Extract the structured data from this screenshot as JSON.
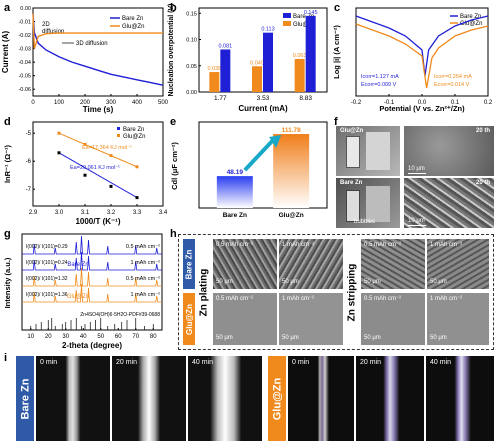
{
  "panel_labels": [
    "a",
    "b",
    "c",
    "d",
    "e",
    "f",
    "g",
    "h",
    "i"
  ],
  "colors": {
    "bare": "#1f1fd6",
    "glu": "#f08a1c",
    "arrow": "#1aa8c8"
  },
  "a": {
    "xlabel": "Time (s)",
    "ylabel": "Current (A)",
    "xticks": [
      "0",
      "100",
      "200",
      "300",
      "400",
      "500"
    ],
    "yticks": [
      "0.00",
      "-0.01",
      "-0.02",
      "-0.03",
      "-0.04",
      "-0.05",
      "-0.06"
    ],
    "ann_2d": "2D",
    "ann_2d2": "diffusion",
    "ann_3d": "3D diffusion",
    "legend": [
      "Bare Zn",
      "Glu@Zn"
    ]
  },
  "b": {
    "xlabel": "Current (mA)",
    "ylabel": "Nucleation overpotential (V)",
    "yticks": [
      "0.00",
      "0.05",
      "0.10",
      "0.15"
    ],
    "legend": [
      "Bare Zn",
      "Glu@Zn"
    ]
  },
  "c": {
    "xlabel": "Potential (V vs. Zn²⁺/Zn)",
    "ylabel": "Log |i| (A cm⁻²)",
    "xticks": [
      "-0.2",
      "-0.1",
      "0.0",
      "0.1",
      "0.2"
    ],
    "legend": [
      "Bare Zn",
      "Glu@Zn"
    ],
    "bare_icorr": "I",
    "bare_l1": "Icorr=1.127 mA",
    "bare_l2": "Ecorr=0.009 V",
    "glu_l1": "Icorr=0.254 mA",
    "glu_l2": "Ecorr=0.014 V"
  },
  "d": {
    "xlabel": "1000/T (K⁻¹)",
    "ylabel": "lnR⁻¹ (Ω⁻¹)",
    "xticks": [
      "2.9",
      "3.0",
      "3.1",
      "3.2",
      "3.3",
      "3.4"
    ],
    "yticks": [
      "-5",
      "-6",
      "-7"
    ],
    "legend": [
      "Bare Zn",
      "Glu@Zn"
    ],
    "ea_glu": "Ea=17.364 KJ mol⁻¹",
    "ea_bare": "Ea=20.061 KJ mol⁻¹"
  },
  "e": {
    "ylabel": "Cdl (μF cm⁻²)",
    "categories": [
      "Bare Zn",
      "Glu@Zn"
    ],
    "values": [
      "48.19",
      "111.78"
    ]
  },
  "f": {
    "label_glu": "Glu@Zn",
    "label_20th": "20 th",
    "scale": "10 μm",
    "label_bare": "Bare Zn",
    "label_bubbles": "bubbles",
    "label_20th_b": "20 th"
  },
  "g": {
    "xlabel": "2-theta (degree)",
    "ylabel": "Intensity (a.u.)",
    "xticks": [
      "10",
      "20",
      "30",
      "40",
      "50",
      "60",
      "70",
      "80"
    ],
    "legend": [
      "Bare Zn",
      "Glu@Zn"
    ],
    "ratios": [
      "I(002)/ I(101)=0.29",
      "I(002)/ I(101)=0.24",
      "I(002)/ I(101)=1.32",
      "I(002)/ I(101)=1.36"
    ],
    "caps": [
      "0.5 mAh cm⁻²",
      "1 mAh cm⁻²",
      "0.5 mAh cm⁻²",
      "1 mAh cm⁻²"
    ],
    "pdf": "Zn4SO4(OH)6·5H2O-PDF#39-0688"
  },
  "h": {
    "row_bare": "Bare Zn",
    "row_glu": "Glu@Zn",
    "plating": "Zn plating",
    "stripping": "Zn stripping",
    "caps": [
      "0.5 mAh cm⁻²",
      "1 mAh cm⁻²",
      "0.5 mAh cm⁻²",
      "1 mAh cm⁻²"
    ],
    "scale": "50 μm"
  },
  "i": {
    "bare": "Bare Zn",
    "glu": "Glu@Zn",
    "times": [
      "0 min",
      "20 min",
      "40 min"
    ]
  },
  "chart_data": [
    {
      "type": "line",
      "title": "",
      "xlabel": "Time (s)",
      "ylabel": "Current (A)",
      "xlim": [
        0,
        500
      ],
      "ylim": [
        -0.065,
        0.0
      ],
      "series": [
        {
          "name": "Bare Zn",
          "x": [
            0,
            5,
            20,
            50,
            100,
            150,
            200,
            250,
            300,
            350,
            400,
            450,
            500
          ],
          "y": [
            -0.004,
            -0.018,
            -0.026,
            -0.031,
            -0.036,
            -0.04,
            -0.043,
            -0.046,
            -0.049,
            -0.051,
            -0.053,
            -0.055,
            -0.057
          ]
        },
        {
          "name": "Glu@Zn",
          "x": [
            0,
            5,
            20,
            50,
            100,
            150,
            200,
            250,
            300,
            350,
            400,
            450,
            500
          ],
          "y": [
            -0.004,
            -0.03,
            -0.021,
            -0.019,
            -0.0185,
            -0.0185,
            -0.0185,
            -0.0185,
            -0.0185,
            -0.0185,
            -0.0185,
            -0.0185,
            -0.0185
          ]
        }
      ]
    },
    {
      "type": "bar",
      "title": "",
      "xlabel": "Current (mA)",
      "ylabel": "Nucleation overpotential (V)",
      "categories": [
        "1.77",
        "3.53",
        "8.83"
      ],
      "ylim": [
        0,
        0.16
      ],
      "series": [
        {
          "name": "Bare Zn",
          "values": [
            0.081,
            0.113,
            0.145
          ]
        },
        {
          "name": "Glu@Zn",
          "values": [
            0.038,
            0.049,
            0.063
          ]
        }
      ]
    },
    {
      "type": "line",
      "title": "",
      "xlabel": "Potential (V vs. Zn²⁺/Zn)",
      "ylabel": "Log |i| (A cm⁻²)",
      "xlim": [
        -0.2,
        0.2
      ],
      "series": [
        {
          "name": "Bare Zn",
          "x": [
            -0.2,
            -0.15,
            -0.1,
            -0.05,
            0.0,
            0.009,
            0.02,
            0.05,
            0.1,
            0.15,
            0.2
          ],
          "y": [
            -1.6,
            -1.9,
            -2.2,
            -2.6,
            -3.3,
            -4.6,
            -3.3,
            -2.6,
            -2.1,
            -1.8,
            -1.6
          ]
        },
        {
          "name": "Glu@Zn",
          "x": [
            -0.2,
            -0.15,
            -0.1,
            -0.05,
            0.0,
            0.014,
            0.03,
            0.05,
            0.1,
            0.15,
            0.2
          ],
          "y": [
            -2.0,
            -2.3,
            -2.6,
            -3.0,
            -3.6,
            -5.2,
            -3.7,
            -3.2,
            -2.6,
            -2.3,
            -2.1
          ]
        }
      ]
    },
    {
      "type": "scatter",
      "title": "",
      "xlabel": "1000/T (K⁻¹)",
      "ylabel": "lnR⁻¹ (Ω⁻¹)",
      "xlim": [
        2.9,
        3.4
      ],
      "ylim": [
        -7.6,
        -4.6
      ],
      "series": [
        {
          "name": "Bare Zn",
          "x": [
            3.0,
            3.1,
            3.2,
            3.3
          ],
          "y": [
            -5.7,
            -6.5,
            -6.9,
            -7.3
          ]
        },
        {
          "name": "Glu@Zn",
          "x": [
            3.0,
            3.1,
            3.2,
            3.3
          ],
          "y": [
            -5.0,
            -5.4,
            -5.8,
            -6.2
          ]
        }
      ]
    },
    {
      "type": "bar",
      "title": "",
      "ylabel": "Cdl (μF cm⁻²)",
      "categories": [
        "Bare Zn",
        "Glu@Zn"
      ],
      "values": [
        48.19,
        111.78
      ],
      "ylim": [
        0,
        130
      ]
    }
  ]
}
